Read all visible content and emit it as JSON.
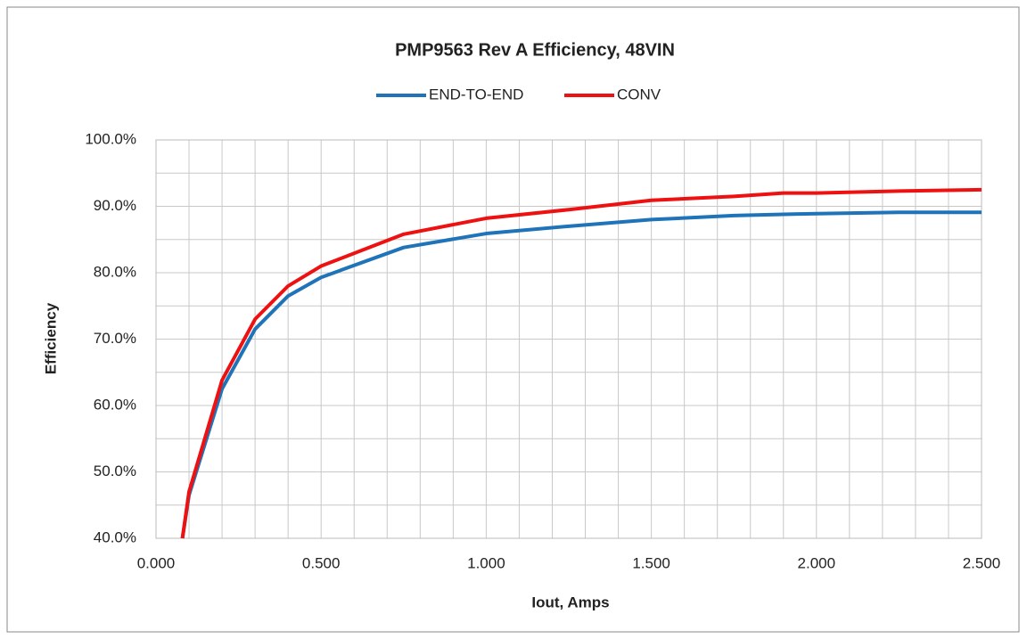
{
  "chart_data": {
    "type": "line",
    "title": "PMP9563 Rev A Efficiency,  48VIN",
    "x_label": "Iout, Amps",
    "y_label": "Efficiency",
    "x": [
      0.08,
      0.1,
      0.2,
      0.3,
      0.4,
      0.5,
      0.75,
      1.0,
      1.25,
      1.5,
      1.75,
      1.9,
      2.0,
      2.25,
      2.5
    ],
    "series": [
      {
        "name": "END-TO-END",
        "color": "#1f73b8",
        "values": [
          40,
          46.5,
          62.5,
          71.5,
          76.5,
          79.3,
          83.8,
          85.9,
          87.0,
          88.0,
          88.6,
          88.8,
          88.9,
          89.1,
          89.1
        ]
      },
      {
        "name": "CONV",
        "color": "#ee1111",
        "values": [
          40,
          47,
          63.8,
          73,
          78,
          81,
          85.8,
          88.2,
          89.5,
          90.9,
          91.5,
          92,
          92,
          92.3,
          92.5
        ]
      }
    ],
    "xlim": [
      0,
      2.5
    ],
    "ylim": [
      40,
      100
    ],
    "xticks": [
      {
        "value": 0,
        "label": "0.000"
      },
      {
        "value": 0.5,
        "label": "0.500"
      },
      {
        "value": 1,
        "label": "1.000"
      },
      {
        "value": 1.5,
        "label": "1.500"
      },
      {
        "value": 2,
        "label": "2.000"
      },
      {
        "value": 2.5,
        "label": "2.500"
      }
    ],
    "yticks": [
      {
        "value": 40,
        "label": "40.0%"
      },
      {
        "value": 50,
        "label": "50.0%"
      },
      {
        "value": 60,
        "label": "60.0%"
      },
      {
        "value": 70,
        "label": "70.0%"
      },
      {
        "value": 80,
        "label": "80.0%"
      },
      {
        "value": 90,
        "label": "90.0%"
      },
      {
        "value": 100,
        "label": "100.0%"
      }
    ],
    "x_minor_grid": [
      0.1,
      0.2,
      0.3,
      0.4,
      0.6,
      0.7,
      0.8,
      0.9,
      1.1,
      1.2,
      1.3,
      1.4,
      1.6,
      1.7,
      1.8,
      1.9,
      2.1,
      2.2,
      2.3,
      2.4
    ],
    "y_minor_grid": [
      45,
      55,
      65,
      75,
      85,
      95
    ],
    "grid": true,
    "legend": "top"
  }
}
